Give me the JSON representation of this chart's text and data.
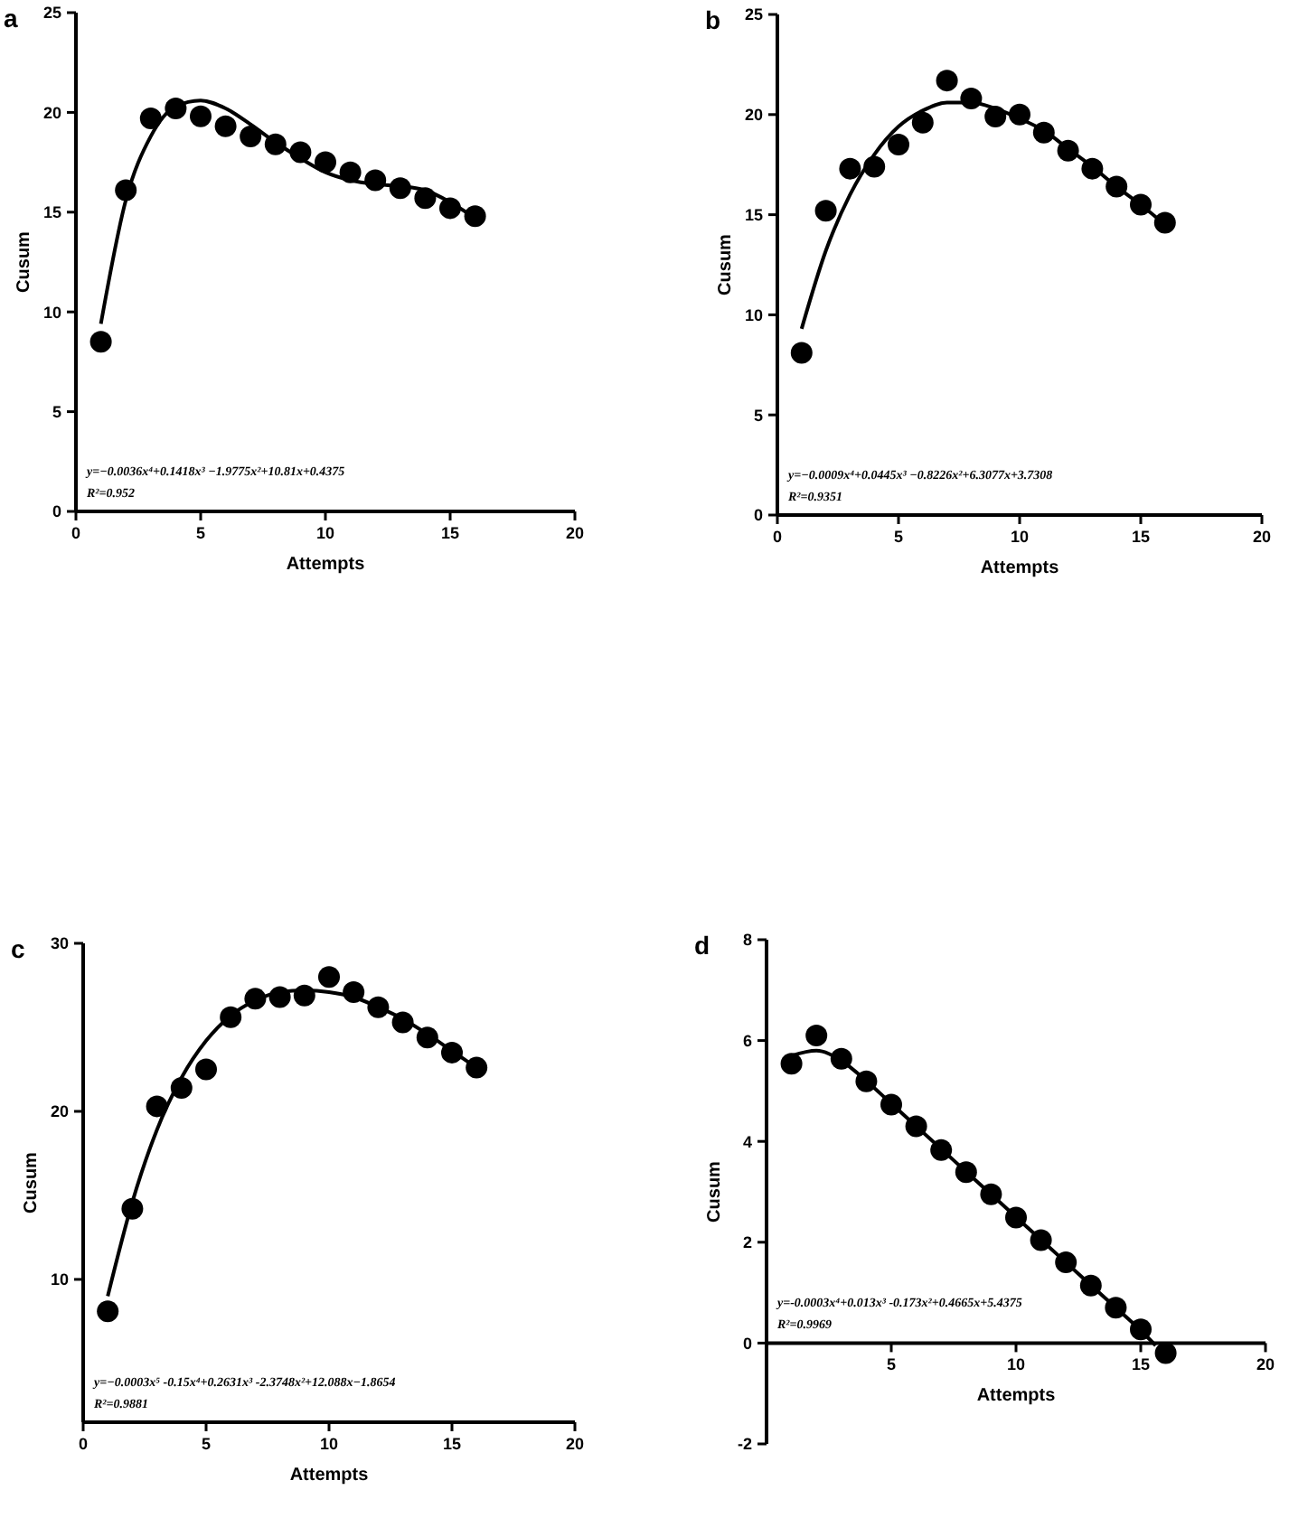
{
  "chart_data": [
    {
      "type": "scatter",
      "title": "a",
      "xlabel": "Attempts",
      "ylabel": "Cusum",
      "xlim": [
        0,
        20
      ],
      "ylim": [
        0,
        25
      ],
      "xticks": [
        0,
        5,
        10,
        15,
        20
      ],
      "yticks": [
        0,
        5,
        10,
        15,
        20,
        25
      ],
      "x": [
        1,
        2,
        3,
        4,
        5,
        6,
        7,
        8,
        9,
        10,
        11,
        12,
        13,
        14,
        15,
        16
      ],
      "series": [
        {
          "marker": "circle",
          "color": "#000000",
          "values": [
            8.5,
            16.1,
            19.7,
            20.2,
            19.8,
            19.3,
            18.8,
            18.4,
            18.0,
            17.5,
            17.0,
            16.6,
            16.2,
            15.7,
            15.2,
            14.8
          ]
        },
        {
          "type": "line",
          "marker": "none",
          "color": "#000000",
          "x": [
            1,
            2,
            3,
            4,
            5,
            6,
            7,
            8,
            9,
            10,
            11,
            12,
            13,
            14,
            15,
            16
          ],
          "values": [
            9.4,
            15.6,
            18.8,
            20.3,
            20.6,
            20.2,
            19.4,
            18.5,
            17.7,
            17.0,
            16.6,
            16.4,
            16.3,
            16.1,
            15.5,
            14.7
          ]
        }
      ],
      "annotations": [
        "y=−0.0036x⁴+0.1418x³ −1.9775x²+10.81x+0.4375",
        "R²=0.952"
      ]
    },
    {
      "type": "scatter",
      "title": "b",
      "xlabel": "Attempts",
      "ylabel": "Cusum",
      "xlim": [
        0,
        20
      ],
      "ylim": [
        0,
        25
      ],
      "xticks": [
        0,
        5,
        10,
        15,
        20
      ],
      "yticks": [
        0,
        5,
        10,
        15,
        20,
        25
      ],
      "x": [
        1,
        2,
        3,
        4,
        5,
        6,
        7,
        8,
        9,
        10,
        11,
        12,
        13,
        14,
        15,
        16
      ],
      "series": [
        {
          "marker": "circle",
          "color": "#000000",
          "values": [
            8.1,
            15.2,
            17.3,
            17.4,
            18.5,
            19.6,
            21.7,
            20.8,
            19.9,
            20.0,
            19.1,
            18.2,
            17.3,
            16.4,
            15.5,
            14.6
          ]
        },
        {
          "type": "line",
          "marker": "none",
          "color": "#000000",
          "x": [
            1,
            2,
            3,
            4,
            5,
            6,
            7,
            8,
            9,
            10,
            11,
            12,
            13,
            14,
            15,
            16
          ],
          "values": [
            9.3,
            13.2,
            16.0,
            18.0,
            19.4,
            20.2,
            20.6,
            20.6,
            20.3,
            19.8,
            19.2,
            18.3,
            17.4,
            16.4,
            15.5,
            14.5
          ]
        }
      ],
      "annotations": [
        "y=−0.0009x⁴+0.0445x³ −0.8226x²+6.3077x+3.7308",
        "R²=0.9351"
      ]
    },
    {
      "type": "scatter",
      "title": "c",
      "xlabel": "Attempts",
      "ylabel": "Cusum",
      "xlim": [
        0,
        20
      ],
      "ylim": [
        1.5,
        30
      ],
      "xticks": [
        0,
        5,
        10,
        15,
        20
      ],
      "yticks": [
        10,
        20,
        30
      ],
      "x": [
        1,
        2,
        3,
        4,
        5,
        6,
        7,
        8,
        9,
        10,
        11,
        12,
        13,
        14,
        15,
        16
      ],
      "series": [
        {
          "marker": "circle",
          "color": "#000000",
          "values": [
            8.1,
            14.2,
            20.3,
            21.4,
            22.5,
            25.6,
            26.7,
            26.8,
            26.9,
            28.0,
            27.1,
            26.2,
            25.3,
            24.4,
            23.5,
            22.6
          ]
        },
        {
          "type": "line",
          "marker": "none",
          "color": "#000000",
          "x": [
            1,
            2,
            3,
            4,
            5,
            6,
            7,
            8,
            9,
            10,
            11,
            12,
            13,
            14,
            15,
            16
          ],
          "values": [
            9.0,
            14.6,
            18.9,
            22.0,
            24.2,
            25.7,
            26.6,
            27.1,
            27.2,
            27.1,
            26.8,
            26.2,
            25.5,
            24.6,
            23.6,
            22.6
          ]
        }
      ],
      "annotations": [
        "y=−0.0003x⁵ -0.15x⁴+0.2631x³ -2.3748x²+12.088x−1.8654",
        "R²=0.9881"
      ]
    },
    {
      "type": "scatter",
      "title": "d",
      "xlabel": "Attempts",
      "ylabel": "Cusum",
      "xlim": [
        0,
        20
      ],
      "ylim": [
        -2,
        8
      ],
      "xticks": [
        5,
        10,
        15,
        20
      ],
      "yticks": [
        -2,
        0,
        2,
        4,
        6,
        8
      ],
      "x": [
        1,
        2,
        3,
        4,
        5,
        6,
        7,
        8,
        9,
        10,
        11,
        12,
        13,
        14,
        15,
        16
      ],
      "series": [
        {
          "marker": "circle",
          "color": "#000000",
          "values": [
            5.54,
            6.1,
            5.64,
            5.19,
            4.73,
            4.3,
            3.83,
            3.39,
            2.95,
            2.49,
            2.04,
            1.6,
            1.14,
            0.7,
            0.27,
            -0.2
          ]
        },
        {
          "type": "line",
          "marker": "none",
          "color": "#000000",
          "x": [
            1,
            2,
            3,
            4,
            5,
            6,
            7,
            8,
            9,
            10,
            11,
            12,
            13,
            14,
            15,
            15.6
          ],
          "values": [
            5.7,
            5.8,
            5.6,
            5.2,
            4.75,
            4.3,
            3.85,
            3.4,
            2.95,
            2.5,
            2.05,
            1.6,
            1.15,
            0.7,
            0.25,
            -0.05
          ]
        }
      ],
      "annotations": [
        "y=-0.0003x⁴+0.013x³ -0.173x²+0.4665x+5.4375",
        "R²=0.9969"
      ]
    }
  ]
}
